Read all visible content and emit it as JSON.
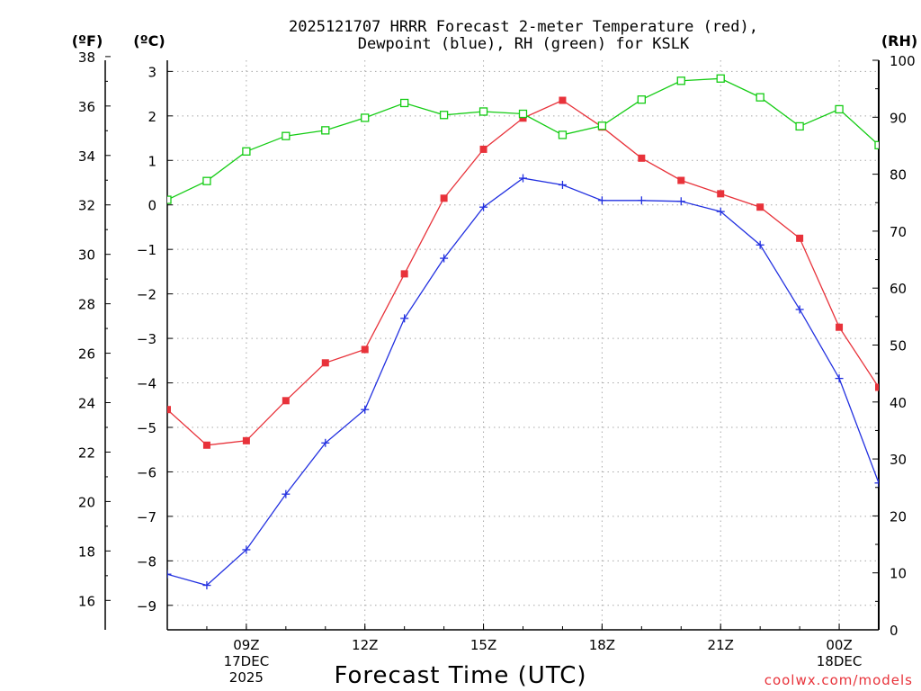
{
  "chart_data": {
    "type": "line",
    "title": [
      "2025121707 HRRR Forecast 2-meter Temperature (red),",
      "Dewpoint (blue), RH (green) for KSLK"
    ],
    "units": {
      "fahrenheit": "(ºF)",
      "celsius": "(ºC)",
      "rh": "(RH)"
    },
    "xlabel": "Forecast Time (UTC)",
    "credit": "coolwx.com/models",
    "x_hours": [
      7,
      8,
      9,
      10,
      11,
      12,
      13,
      14,
      15,
      16,
      17,
      18,
      19,
      20,
      21,
      22,
      23,
      24,
      25
    ],
    "x_range": [
      7,
      25
    ],
    "x_ticks": [
      {
        "hour": 9,
        "lines": [
          "09Z",
          "17DEC",
          "2025"
        ]
      },
      {
        "hour": 12,
        "lines": [
          "12Z"
        ]
      },
      {
        "hour": 15,
        "lines": [
          "15Z"
        ]
      },
      {
        "hour": 18,
        "lines": [
          "18Z"
        ]
      },
      {
        "hour": 21,
        "lines": [
          "21Z"
        ]
      },
      {
        "hour": 24,
        "lines": [
          "00Z",
          "18DEC"
        ]
      }
    ],
    "celsius_axis": {
      "range": [
        -9.55,
        3.25
      ],
      "ticks": [
        "3",
        "2",
        "1",
        "0",
        "−1",
        "−2",
        "−3",
        "−4",
        "−5",
        "−6",
        "−7",
        "−8",
        "−9"
      ]
    },
    "fahrenheit_axis": {
      "range": [
        14.81,
        37.85
      ],
      "ticks": [
        "38",
        "36",
        "34",
        "32",
        "30",
        "28",
        "26",
        "24",
        "22",
        "20",
        "18",
        "16"
      ]
    },
    "rh_axis": {
      "range": [
        0,
        100
      ],
      "ticks": [
        "100",
        "90",
        "80",
        "70",
        "60",
        "50",
        "40",
        "30",
        "20",
        "10",
        "0"
      ]
    },
    "series": [
      {
        "name": "Temperature",
        "axis": "celsius",
        "color": "#e8323a",
        "marker": "filled-square",
        "values": [
          -4.6,
          -5.4,
          -5.3,
          -4.4,
          -3.55,
          -3.25,
          -1.55,
          0.15,
          1.25,
          1.95,
          2.35,
          1.75,
          1.05,
          0.55,
          0.25,
          -0.05,
          -0.75,
          -2.75,
          -4.1
        ]
      },
      {
        "name": "Dewpoint",
        "axis": "celsius",
        "color": "#2230e0",
        "marker": "plus",
        "values": [
          -8.3,
          -8.55,
          -7.75,
          -6.5,
          -5.35,
          -4.6,
          -2.55,
          -1.2,
          -0.05,
          0.6,
          0.45,
          0.1,
          0.1,
          0.08,
          -0.15,
          -0.9,
          -2.35,
          -3.9,
          -6.25
        ]
      },
      {
        "name": "RH",
        "axis": "rh",
        "color": "#14cc14",
        "marker": "open-square",
        "values": [
          75.5,
          78.8,
          84,
          86.7,
          87.7,
          89.9,
          92.5,
          90.4,
          91,
          90.6,
          86.9,
          88.5,
          93.1,
          96.4,
          96.8,
          93.5,
          88.4,
          91.4,
          85.1
        ]
      }
    ],
    "grid": true
  }
}
